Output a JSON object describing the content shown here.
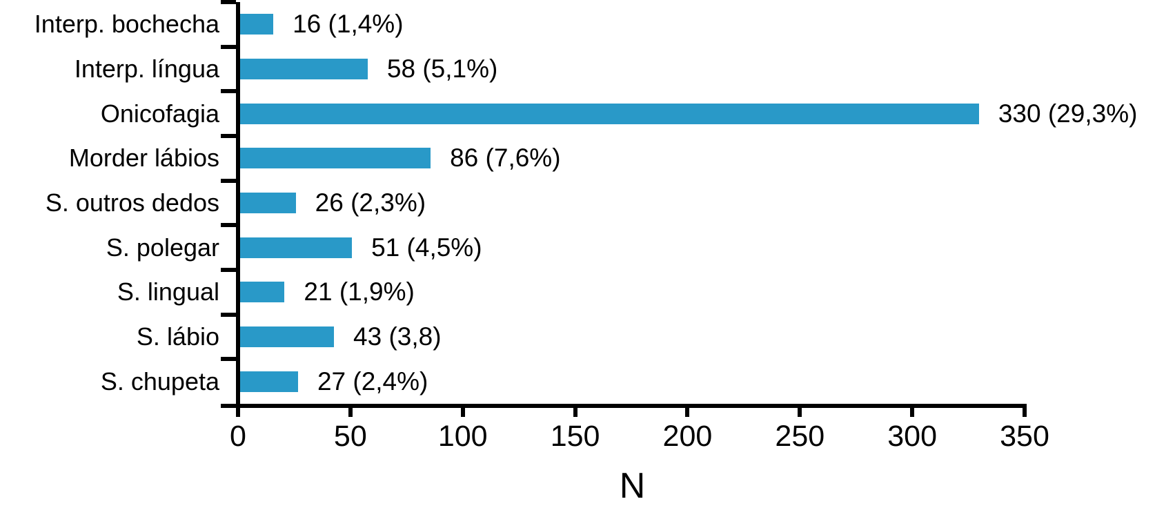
{
  "chart_data": {
    "type": "bar",
    "orientation": "horizontal",
    "title": "",
    "categories": [
      "Interp. bochecha",
      "Interp. língua",
      "Onicofagia",
      "Morder lábios",
      "S. outros dedos",
      "S. polegar",
      "S. lingual",
      "S. lábio",
      "S. chupeta"
    ],
    "values": [
      16,
      58,
      330,
      86,
      26,
      51,
      21,
      43,
      27
    ],
    "bar_labels": [
      "16 (1,4%)",
      "58 (5,1%)",
      "330 (29,3%)",
      "86 (7,6%)",
      "26 (2,3%)",
      "51 (4,5%)",
      "21 (1,9%)",
      "43 (3,8)",
      "27 (2,4%)"
    ],
    "xlabel": "N",
    "xticks": [
      0,
      50,
      100,
      150,
      200,
      250,
      300,
      350
    ],
    "xlim": [
      0,
      350
    ],
    "grid": false,
    "legend": null,
    "bar_color": "#2999C8",
    "axis_color": "#000000",
    "background_color": "#FFFFFF"
  }
}
